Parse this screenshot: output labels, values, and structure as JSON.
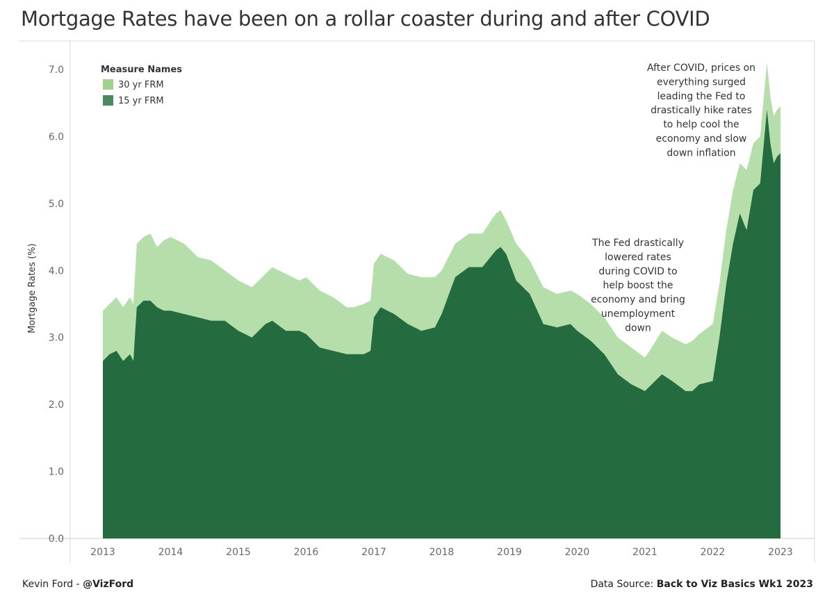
{
  "title": "Mortgage Rates have been on a rollar coaster during and after COVID",
  "footer": {
    "author_prefix": "Kevin Ford - ",
    "author_handle": "@VizFord",
    "source_prefix": "Data Source: ",
    "source_name": "Back to Viz Basics Wk1 2023"
  },
  "colors": {
    "fixed_30yr": "#b5deab",
    "fixed_15yr": "#246b3f",
    "legend_30yr": "#9fd28f",
    "legend_15yr": "#4a8a5e"
  },
  "chart_data": {
    "type": "area",
    "ylabel": "Mortgage Rates (%)",
    "xlabel": "",
    "ylim": [
      0,
      7.0
    ],
    "xlim": [
      2013,
      2023
    ],
    "yticks": [
      "0.0",
      "1.0",
      "2.0",
      "3.0",
      "4.0",
      "5.0",
      "6.0",
      "7.0"
    ],
    "xticks": [
      "2013",
      "2014",
      "2015",
      "2016",
      "2017",
      "2018",
      "2019",
      "2020",
      "2021",
      "2022",
      "2023"
    ],
    "grid": false,
    "legend": {
      "title": "Measure Names",
      "placement": "top-left",
      "items": [
        "30 yr FRM",
        "15 yr FRM"
      ]
    },
    "series": [
      {
        "name": "30 yr FRM",
        "x": [
          2013.0,
          2013.1,
          2013.2,
          2013.3,
          2013.4,
          2013.45,
          2013.5,
          2013.6,
          2013.7,
          2013.8,
          2013.9,
          2014.0,
          2014.2,
          2014.4,
          2014.6,
          2014.8,
          2015.0,
          2015.2,
          2015.4,
          2015.5,
          2015.7,
          2015.9,
          2016.0,
          2016.2,
          2016.4,
          2016.6,
          2016.7,
          2016.85,
          2016.95,
          2017.0,
          2017.1,
          2017.3,
          2017.5,
          2017.7,
          2017.9,
          2018.0,
          2018.2,
          2018.4,
          2018.6,
          2018.8,
          2018.87,
          2018.95,
          2019.1,
          2019.3,
          2019.5,
          2019.7,
          2019.9,
          2020.0,
          2020.2,
          2020.4,
          2020.6,
          2020.8,
          2021.0,
          2021.1,
          2021.25,
          2021.4,
          2021.6,
          2021.7,
          2021.8,
          2022.0,
          2022.1,
          2022.2,
          2022.3,
          2022.4,
          2022.5,
          2022.6,
          2022.7,
          2022.8,
          2022.85,
          2022.9,
          2022.95,
          2023.0
        ],
        "values": [
          3.4,
          3.5,
          3.6,
          3.45,
          3.6,
          3.5,
          4.4,
          4.5,
          4.55,
          4.35,
          4.45,
          4.5,
          4.4,
          4.2,
          4.15,
          4.0,
          3.85,
          3.75,
          3.95,
          4.05,
          3.95,
          3.85,
          3.9,
          3.7,
          3.6,
          3.45,
          3.45,
          3.5,
          3.55,
          4.1,
          4.25,
          4.15,
          3.95,
          3.9,
          3.9,
          4.0,
          4.4,
          4.55,
          4.55,
          4.85,
          4.9,
          4.75,
          4.4,
          4.15,
          3.75,
          3.65,
          3.7,
          3.65,
          3.5,
          3.3,
          3.0,
          2.85,
          2.7,
          2.85,
          3.1,
          3.0,
          2.9,
          2.95,
          3.05,
          3.2,
          3.8,
          4.6,
          5.2,
          5.6,
          5.5,
          5.9,
          6.0,
          7.1,
          6.6,
          6.3,
          6.4,
          6.45
        ]
      },
      {
        "name": "15 yr FRM",
        "x": [
          2013.0,
          2013.1,
          2013.2,
          2013.3,
          2013.4,
          2013.45,
          2013.5,
          2013.6,
          2013.7,
          2013.8,
          2013.9,
          2014.0,
          2014.2,
          2014.4,
          2014.6,
          2014.8,
          2015.0,
          2015.2,
          2015.4,
          2015.5,
          2015.7,
          2015.9,
          2016.0,
          2016.2,
          2016.4,
          2016.6,
          2016.7,
          2016.85,
          2016.95,
          2017.0,
          2017.1,
          2017.3,
          2017.5,
          2017.7,
          2017.9,
          2018.0,
          2018.2,
          2018.4,
          2018.6,
          2018.8,
          2018.87,
          2018.95,
          2019.1,
          2019.3,
          2019.5,
          2019.7,
          2019.9,
          2020.0,
          2020.2,
          2020.4,
          2020.6,
          2020.8,
          2021.0,
          2021.1,
          2021.25,
          2021.4,
          2021.6,
          2021.7,
          2021.8,
          2022.0,
          2022.1,
          2022.2,
          2022.3,
          2022.4,
          2022.5,
          2022.6,
          2022.7,
          2022.8,
          2022.85,
          2022.9,
          2022.95,
          2023.0
        ],
        "values": [
          2.65,
          2.75,
          2.8,
          2.65,
          2.75,
          2.65,
          3.45,
          3.55,
          3.55,
          3.45,
          3.4,
          3.4,
          3.35,
          3.3,
          3.25,
          3.25,
          3.1,
          3.0,
          3.2,
          3.25,
          3.1,
          3.1,
          3.05,
          2.85,
          2.8,
          2.75,
          2.75,
          2.75,
          2.8,
          3.3,
          3.45,
          3.35,
          3.2,
          3.1,
          3.15,
          3.35,
          3.9,
          4.05,
          4.05,
          4.3,
          4.35,
          4.25,
          3.85,
          3.65,
          3.2,
          3.15,
          3.2,
          3.1,
          2.95,
          2.75,
          2.45,
          2.3,
          2.2,
          2.3,
          2.45,
          2.35,
          2.2,
          2.2,
          2.3,
          2.35,
          3.0,
          3.8,
          4.4,
          4.85,
          4.6,
          5.2,
          5.3,
          6.4,
          5.9,
          5.6,
          5.7,
          5.75
        ]
      }
    ],
    "annotations": [
      {
        "id": "covid",
        "lines": [
          "The Fed drastically",
          "lowered rates",
          "during COVID to",
          "help boost the",
          "economy and bring",
          "unemployment",
          "down"
        ]
      },
      {
        "id": "after-covid",
        "lines": [
          "After COVID, prices on",
          "everything surged",
          "leading the Fed to",
          "drastically hike rates",
          "to help cool the",
          "economy and slow",
          "down inflation"
        ]
      }
    ]
  }
}
